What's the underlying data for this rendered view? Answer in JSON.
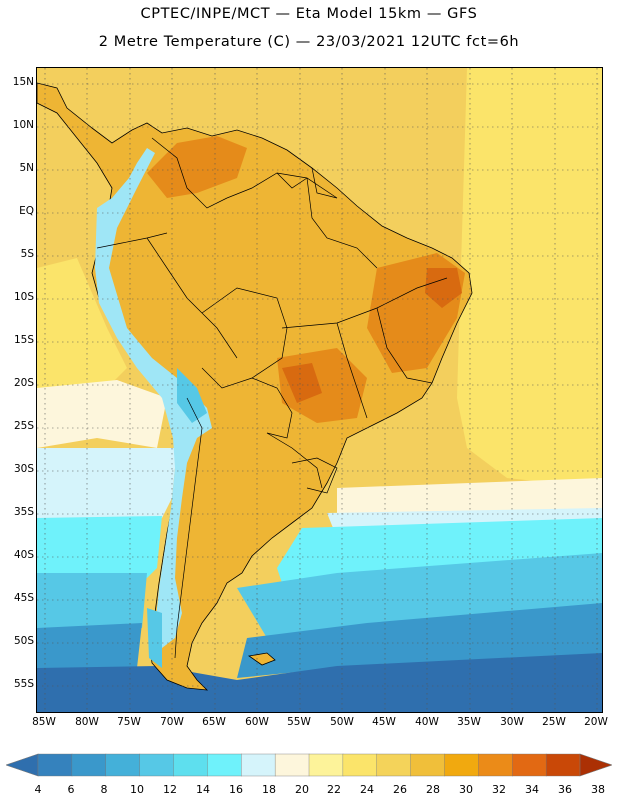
{
  "header": {
    "line1": "CPTEC/INPE/MCT —  Eta Model 15km — GFS",
    "line2": "2 Metre Temperature (C) — 23/03/2021 12UTC fct=6h"
  },
  "axes": {
    "lat_labels": [
      "15N",
      "10N",
      "5N",
      "EQ",
      "5S",
      "10S",
      "15S",
      "20S",
      "25S",
      "30S",
      "35S",
      "40S",
      "45S",
      "50S",
      "55S"
    ],
    "lon_labels": [
      "85W",
      "80W",
      "75W",
      "70W",
      "65W",
      "60W",
      "55W",
      "50W",
      "45W",
      "40W",
      "35W",
      "30W",
      "25W",
      "20W"
    ]
  },
  "colorbar": {
    "levels": [
      "4",
      "6",
      "8",
      "10",
      "12",
      "14",
      "16",
      "18",
      "20",
      "22",
      "24",
      "26",
      "28",
      "30",
      "32",
      "34",
      "36",
      "38"
    ],
    "colors": [
      "#2f6fae",
      "#3582bd",
      "#3a98cb",
      "#44b0d9",
      "#56c8e6",
      "#5edfee",
      "#6ff2fb",
      "#d5f4fb",
      "#fdf6dc",
      "#fdf39a",
      "#fbe46a",
      "#f4d35a",
      "#f0bf3a",
      "#f1a90f",
      "#eb8b18",
      "#e26913",
      "#c94807",
      "#ab3004"
    ]
  },
  "palette": {
    "ocean_warm": "#f3cf5d",
    "ocean_mild": "#fbe46a",
    "ocean_pale": "#fdf6dc",
    "ocean_cool": "#d5f4fb",
    "ocean_cold1": "#6ff2fb",
    "ocean_cold2": "#56c8e6",
    "ocean_cold3": "#3a98cb",
    "ocean_cold4": "#2f6fae",
    "land_base": "#eeb534",
    "land_hot": "#e58b1a",
    "land_hotter": "#d86a10",
    "andes_cold": "#9fe6f6",
    "andes_colder": "#56c8e6",
    "border_color": "#000000",
    "grid_color": "#555555"
  }
}
